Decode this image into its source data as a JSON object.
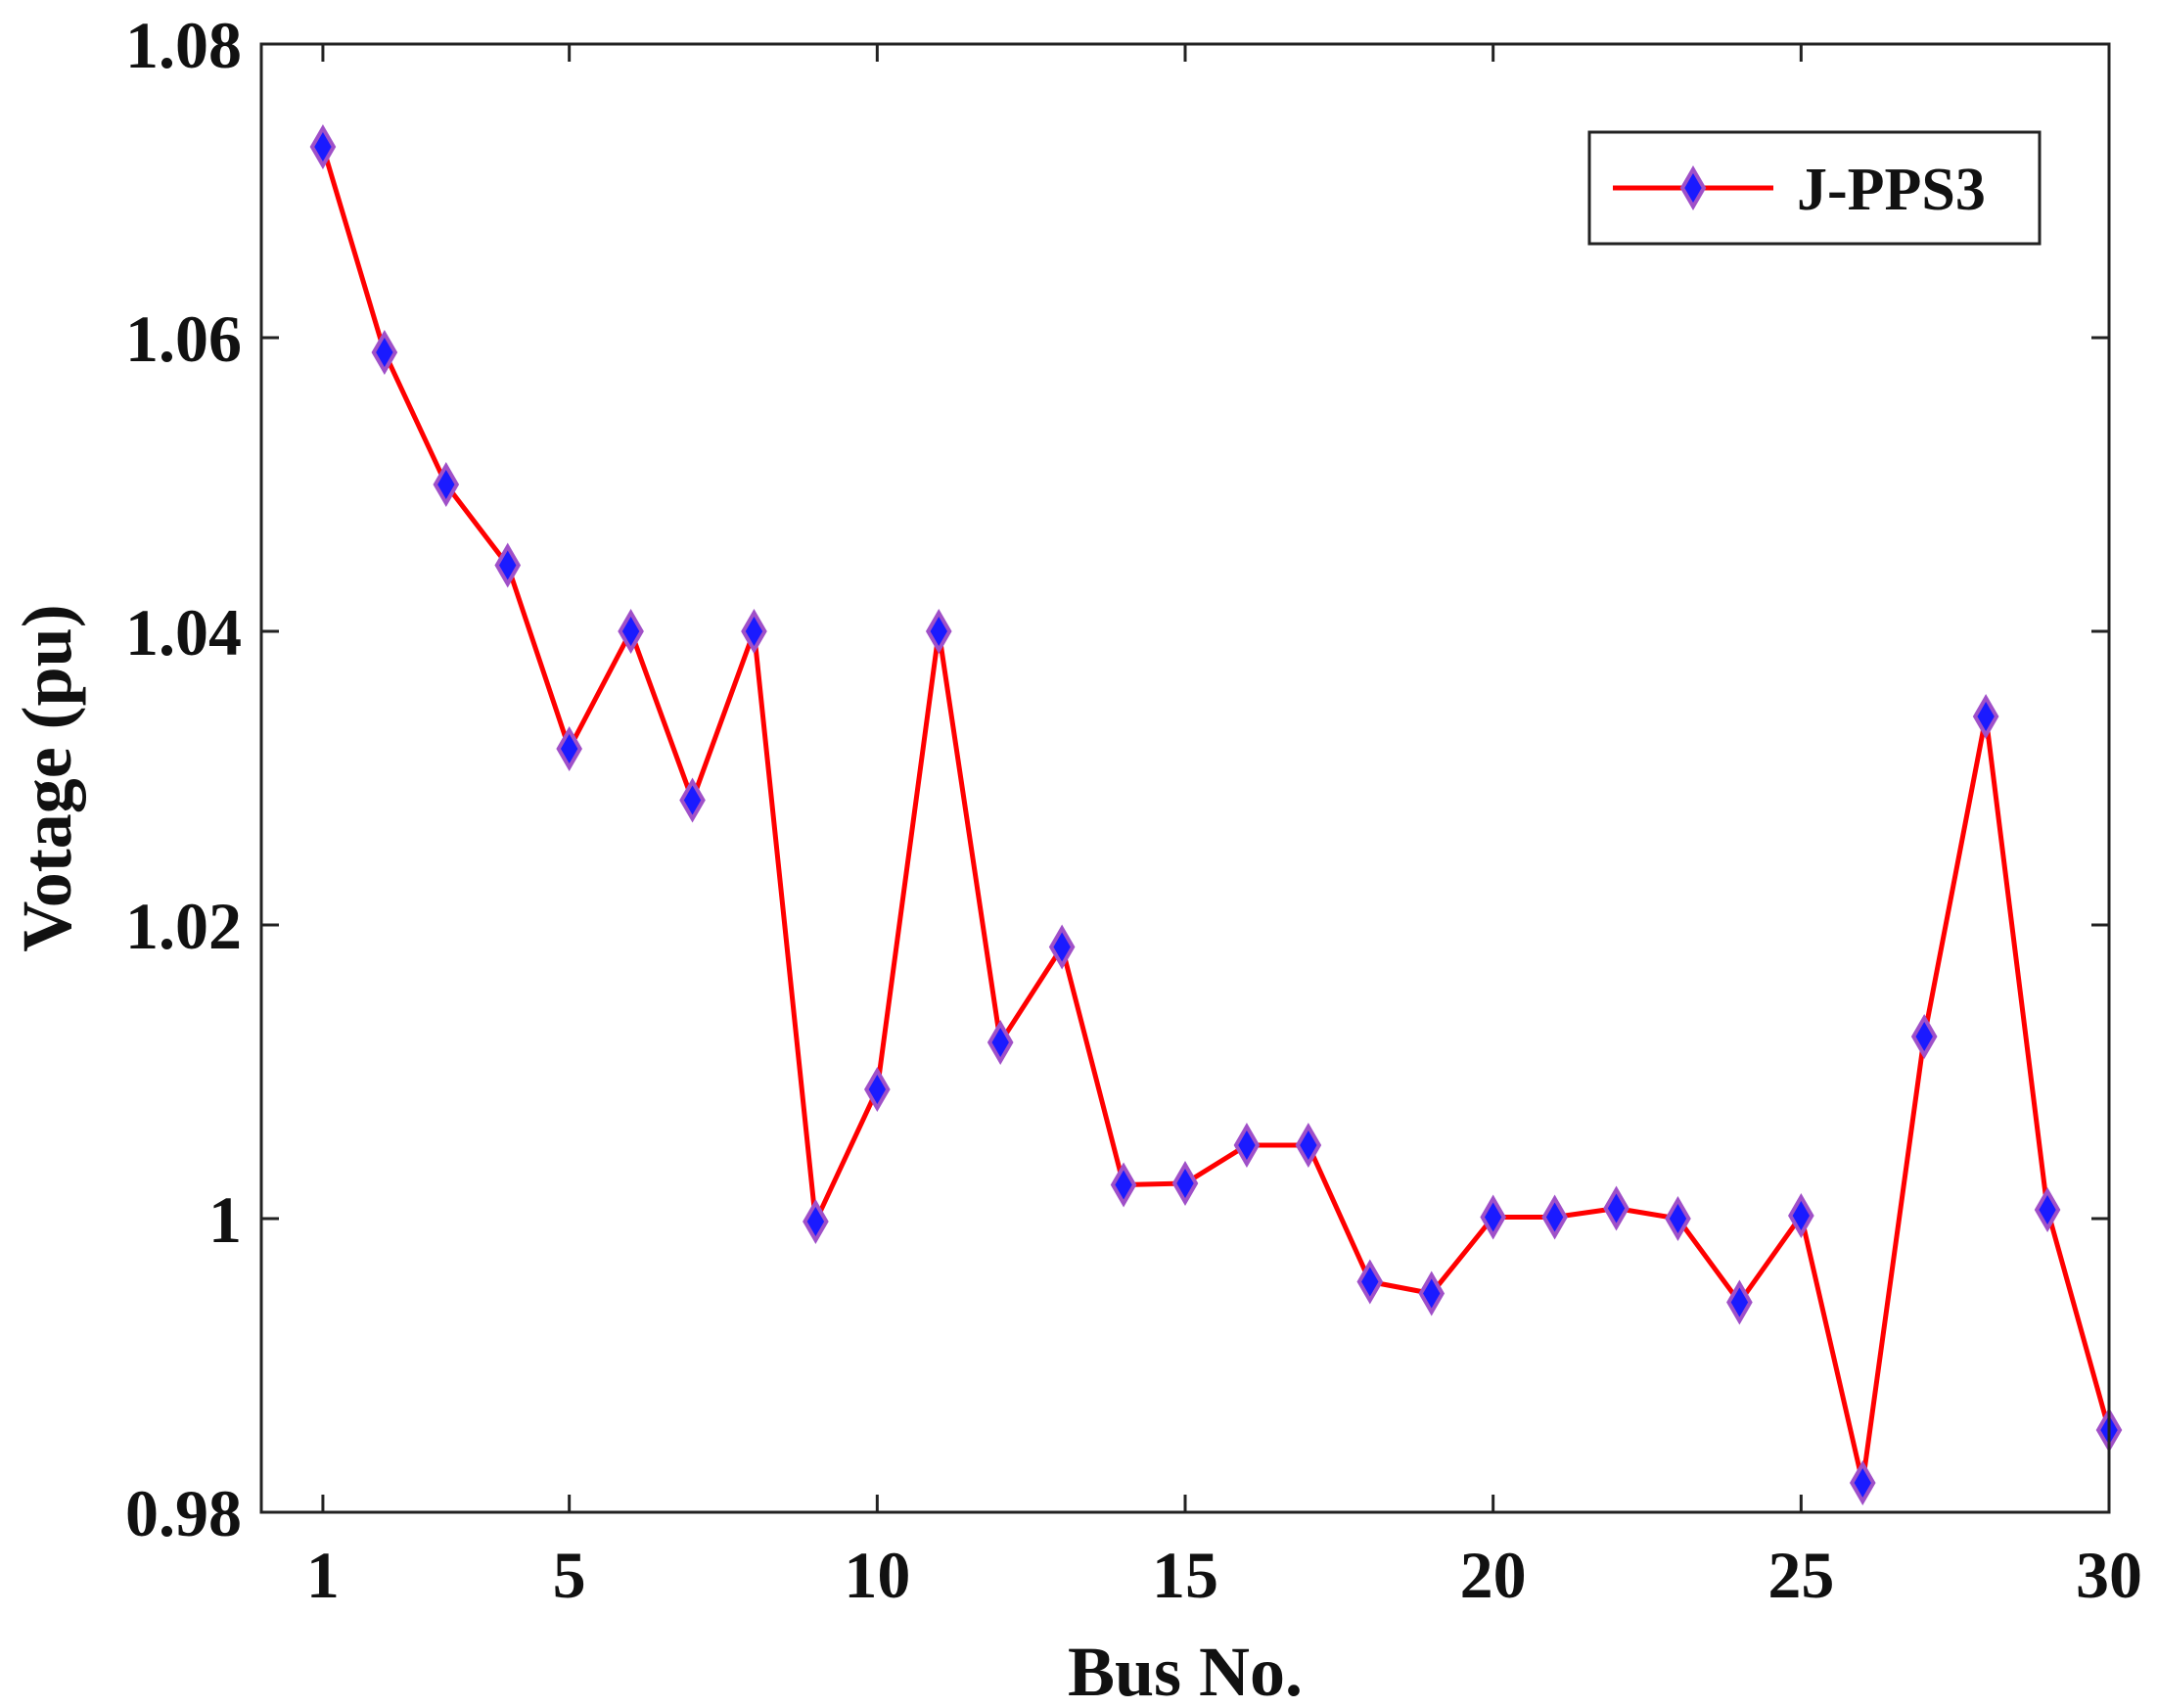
{
  "chart_data": {
    "type": "line",
    "title": "",
    "xlabel": "Bus No.",
    "ylabel": "Votage (pu)",
    "xlim": [
      0,
      30
    ],
    "ylim": [
      0.98,
      1.08
    ],
    "xticks": [
      1,
      5,
      10,
      15,
      20,
      25,
      30
    ],
    "xtick_labels": [
      "1",
      "5",
      "10",
      "15",
      "20",
      "25",
      "30"
    ],
    "yticks": [
      0.98,
      1.0,
      1.02,
      1.04,
      1.06,
      1.08
    ],
    "ytick_labels": [
      "0.98",
      "1",
      "1.02",
      "1.04",
      "1.06",
      "1.08"
    ],
    "grid": false,
    "legend_position": "top-right",
    "x": [
      1,
      2,
      3,
      4,
      5,
      6,
      7,
      8,
      9,
      10,
      11,
      12,
      13,
      14,
      15,
      16,
      17,
      18,
      19,
      20,
      21,
      22,
      23,
      24,
      25,
      26,
      27,
      28,
      29,
      30
    ],
    "series": [
      {
        "name": "J-PPS3",
        "line_color": "#ff0000",
        "marker": "diamond",
        "marker_fill": "#1a1aff",
        "marker_edge": "#a050c8",
        "values": [
          1.073,
          1.059,
          1.05,
          1.0445,
          1.032,
          1.04,
          1.0285,
          1.04,
          0.9998,
          1.0088,
          1.04,
          1.012,
          1.0185,
          1.0023,
          1.0024,
          1.005,
          1.005,
          0.9957,
          0.9949,
          1.0001,
          1.0001,
          1.0007,
          1.0,
          0.9943,
          1.0002,
          0.982,
          1.0124,
          1.0342,
          1.0006,
          0.9856
        ]
      }
    ]
  }
}
